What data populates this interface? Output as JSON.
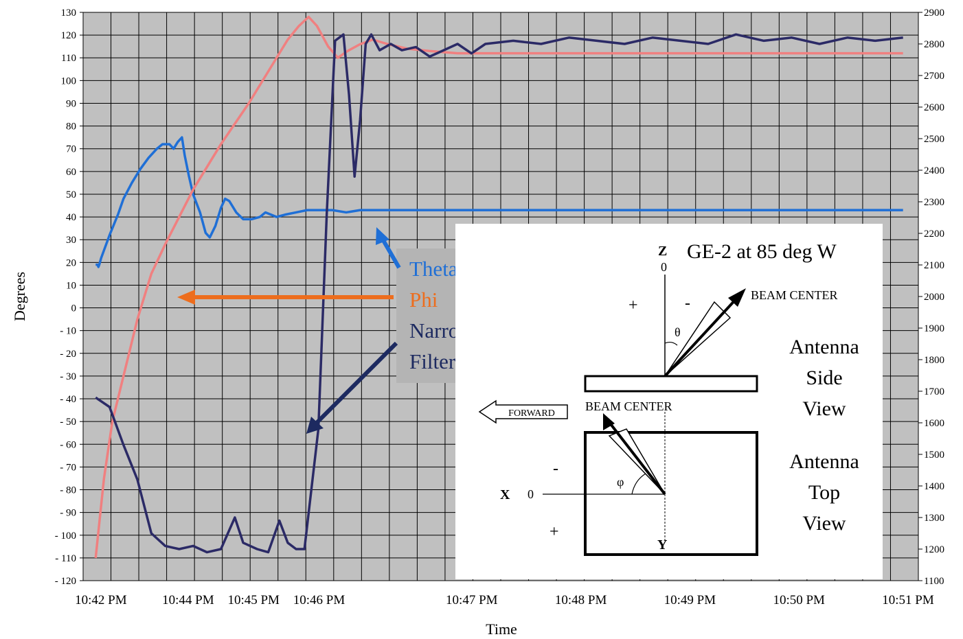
{
  "chart_data": {
    "type": "line",
    "xlabel": "Time",
    "ylabel": "Degrees",
    "x_ticks": [
      "10:42 PM",
      "10:44 PM",
      "10:45 PM",
      "10:46 PM",
      "10:47 PM",
      "10:48 PM",
      "10:49 PM",
      "10:50 PM",
      "10:51 PM"
    ],
    "ylim": [
      -120,
      130
    ],
    "y2lim": [
      1100,
      2900
    ],
    "y_ticks": [
      "130",
      "120",
      "110",
      "100",
      "90",
      "80",
      "70",
      "60",
      "50",
      "40",
      "30",
      "20",
      "10",
      "0",
      "- 10",
      "- 20",
      "- 30",
      "- 40",
      "- 50",
      "- 60",
      "- 70",
      "- 80",
      "- 90",
      "- 100",
      "- 110",
      "- 120"
    ],
    "y2_ticks": [
      "2900",
      "2800",
      "2700",
      "2600",
      "2500",
      "2400",
      "2300",
      "2200",
      "2100",
      "2000",
      "1900",
      "1800",
      "1700",
      "1600",
      "1500",
      "1400",
      "1300",
      "1200",
      "1100"
    ],
    "grid": true,
    "series": [
      {
        "name": "Theta",
        "color": "#1f6fd6",
        "points": [
          [
            0,
            19
          ],
          [
            0.07,
            19
          ],
          [
            0.1,
            18
          ],
          [
            0.13,
            19
          ],
          [
            0.2,
            22
          ],
          [
            0.5,
            32
          ],
          [
            0.8,
            41
          ],
          [
            1.0,
            48
          ],
          [
            1.3,
            55
          ],
          [
            1.6,
            61
          ],
          [
            1.9,
            66
          ],
          [
            2.2,
            70
          ],
          [
            2.4,
            72
          ],
          [
            2.65,
            72
          ],
          [
            2.8,
            70
          ],
          [
            2.95,
            73
          ],
          [
            3.1,
            75
          ],
          [
            3.2,
            67
          ],
          [
            3.35,
            58
          ],
          [
            3.5,
            50
          ],
          [
            3.75,
            42
          ],
          [
            3.95,
            33
          ],
          [
            4.1,
            31
          ],
          [
            4.3,
            36
          ],
          [
            4.5,
            44
          ],
          [
            4.65,
            48
          ],
          [
            4.8,
            47
          ],
          [
            5.05,
            42
          ],
          [
            5.3,
            39
          ],
          [
            5.6,
            39
          ],
          [
            5.9,
            40
          ],
          [
            6.1,
            42
          ],
          [
            6.3,
            41
          ],
          [
            6.5,
            40
          ],
          [
            6.8,
            41
          ],
          [
            7.2,
            42
          ],
          [
            7.6,
            43
          ],
          [
            8.0,
            43
          ],
          [
            8.5,
            43
          ],
          [
            9.0,
            42
          ],
          [
            9.5,
            43
          ],
          [
            10,
            43
          ],
          [
            11,
            43
          ],
          [
            12,
            43
          ],
          [
            13,
            43
          ],
          [
            14,
            43
          ],
          [
            15,
            43
          ],
          [
            16,
            43
          ],
          [
            17,
            43
          ],
          [
            18,
            43
          ],
          [
            19,
            43
          ],
          [
            20,
            43
          ],
          [
            21,
            43
          ],
          [
            22,
            43
          ],
          [
            23,
            43
          ],
          [
            24,
            43
          ],
          [
            25,
            43
          ],
          [
            26,
            43
          ],
          [
            27,
            43
          ],
          [
            28,
            43
          ],
          [
            29,
            43
          ]
        ]
      },
      {
        "name": "Phi",
        "color": "#f08080",
        "points": [
          [
            0,
            -110
          ],
          [
            0.3,
            -75
          ],
          [
            0.6,
            -50
          ],
          [
            1.0,
            -30
          ],
          [
            1.5,
            -5
          ],
          [
            2.0,
            15
          ],
          [
            2.5,
            28
          ],
          [
            3.0,
            40
          ],
          [
            3.5,
            52
          ],
          [
            4.0,
            62
          ],
          [
            4.5,
            72
          ],
          [
            5.0,
            81
          ],
          [
            5.5,
            90
          ],
          [
            6.0,
            100
          ],
          [
            6.5,
            110
          ],
          [
            6.9,
            118
          ],
          [
            7.3,
            124
          ],
          [
            7.65,
            128
          ],
          [
            7.95,
            124
          ],
          [
            8.35,
            115
          ],
          [
            8.7,
            110
          ],
          [
            9.05,
            113
          ],
          [
            9.5,
            116
          ],
          [
            9.95,
            118
          ],
          [
            10.5,
            116
          ],
          [
            11.2,
            114
          ],
          [
            12,
            113
          ],
          [
            13,
            112
          ],
          [
            14,
            112
          ],
          [
            15,
            112
          ],
          [
            16,
            112
          ],
          [
            17,
            112
          ],
          [
            18,
            112
          ],
          [
            19,
            112
          ],
          [
            20,
            112
          ],
          [
            21,
            112
          ],
          [
            22,
            112
          ],
          [
            23,
            112
          ],
          [
            24,
            112
          ],
          [
            25,
            112
          ],
          [
            26,
            112
          ],
          [
            27,
            112
          ],
          [
            28,
            112
          ],
          [
            29,
            112
          ]
        ]
      },
      {
        "name": "Narrow-Band Filter Power",
        "color": "#2b2a66",
        "y_axis": "right",
        "points": [
          [
            0,
            1680
          ],
          [
            0.5,
            1650
          ],
          [
            1.0,
            1530
          ],
          [
            1.5,
            1420
          ],
          [
            2.0,
            1250
          ],
          [
            2.5,
            1210
          ],
          [
            3.0,
            1200
          ],
          [
            3.5,
            1210
          ],
          [
            4.0,
            1190
          ],
          [
            4.5,
            1200
          ],
          [
            5.0,
            1300
          ],
          [
            5.3,
            1220
          ],
          [
            5.8,
            1200
          ],
          [
            6.2,
            1190
          ],
          [
            6.6,
            1290
          ],
          [
            6.9,
            1220
          ],
          [
            7.2,
            1200
          ],
          [
            7.5,
            1200
          ],
          [
            8.0,
            1580
          ],
          [
            8.3,
            2260
          ],
          [
            8.6,
            2810
          ],
          [
            8.9,
            2830
          ],
          [
            9.1,
            2640
          ],
          [
            9.3,
            2380
          ],
          [
            9.5,
            2560
          ],
          [
            9.7,
            2800
          ],
          [
            9.9,
            2830
          ],
          [
            10.2,
            2780
          ],
          [
            10.6,
            2800
          ],
          [
            11,
            2780
          ],
          [
            11.5,
            2790
          ],
          [
            12,
            2760
          ],
          [
            13,
            2800
          ],
          [
            13.5,
            2770
          ],
          [
            14,
            2800
          ],
          [
            15,
            2810
          ],
          [
            16,
            2800
          ],
          [
            17,
            2820
          ],
          [
            18,
            2810
          ],
          [
            19,
            2800
          ],
          [
            20,
            2820
          ],
          [
            21,
            2810
          ],
          [
            22,
            2800
          ],
          [
            23,
            2830
          ],
          [
            24,
            2810
          ],
          [
            25,
            2820
          ],
          [
            26,
            2800
          ],
          [
            27,
            2820
          ],
          [
            28,
            2810
          ],
          [
            29,
            2820
          ]
        ]
      }
    ]
  },
  "legend": {
    "items": [
      {
        "label": "Theta",
        "color": "#1f6fd6"
      },
      {
        "label": "Phi",
        "color": "#ed6d1d"
      },
      {
        "label": "Narrow-Band",
        "color": "#1d2a60"
      },
      {
        "label": "Filter Power",
        "color": "#1d2a60"
      }
    ]
  },
  "inset": {
    "title": "GE-2 at 85 deg W",
    "z_label": "Z",
    "zero_top": "0",
    "plus_top": "+",
    "minus_top": "-",
    "beam_center_1": "BEAM CENTER",
    "theta_sym": "θ",
    "side_view": [
      "Antenna",
      "Side",
      "View"
    ],
    "top_view": [
      "Antenna",
      "Top",
      "View"
    ],
    "forward": "FORWARD",
    "beam_center_2": "BEAM CENTER",
    "minus_mid": "-",
    "phi_sym": "φ",
    "x_label": "X",
    "zero_mid": "0",
    "plus_bottom": "+",
    "y_label": "Y"
  }
}
